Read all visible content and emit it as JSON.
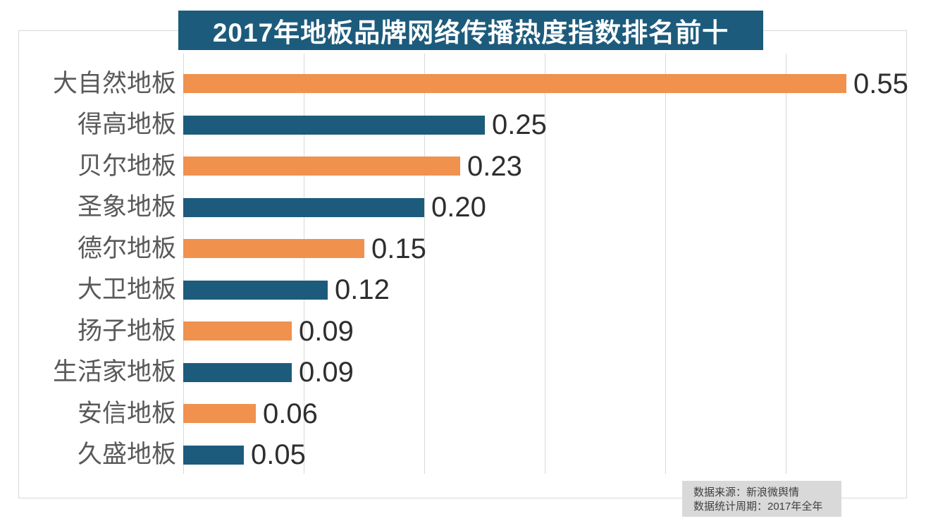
{
  "chart_data": {
    "type": "bar",
    "orientation": "horizontal",
    "title": "2017年地板品牌网络传播热度指数排名前十",
    "categories": [
      "大自然地板",
      "得高地板",
      "贝尔地板",
      "圣象地板",
      "德尔地板",
      "大卫地板",
      "扬子地板",
      "生活家地板",
      "安信地板",
      "久盛地板"
    ],
    "values": [
      0.55,
      0.25,
      0.23,
      0.2,
      0.15,
      0.12,
      0.09,
      0.09,
      0.06,
      0.05
    ],
    "value_labels": [
      "0.55",
      "0.25",
      "0.23",
      "0.20",
      "0.15",
      "0.12",
      "0.09",
      "0.09",
      "0.06",
      "0.05"
    ],
    "xlabel": "",
    "ylabel": "",
    "xlim": [
      0,
      0.6
    ],
    "gridline_values": [
      0,
      0.1,
      0.2,
      0.3,
      0.4,
      0.5,
      0.6
    ],
    "grid": "vertical",
    "legend": "none",
    "axis_tick_labels_visible": false,
    "bar_color_pattern": "alternating"
  },
  "colors": {
    "bar_orange": "#f0914e",
    "bar_teal": "#1d5b7c",
    "title_banner_bg": "#1d5b7c",
    "title_text": "#ffffff",
    "gridline": "#d9d9d9",
    "border": "#d9d9d9",
    "category_label": "#595959",
    "value_label": "#2e2e2e",
    "source_box_bg": "#d9d9d9",
    "source_text": "#404040"
  },
  "source_note": {
    "line1": "数据来源：新浪微舆情",
    "line2": "数据统计周期：2017年全年"
  }
}
